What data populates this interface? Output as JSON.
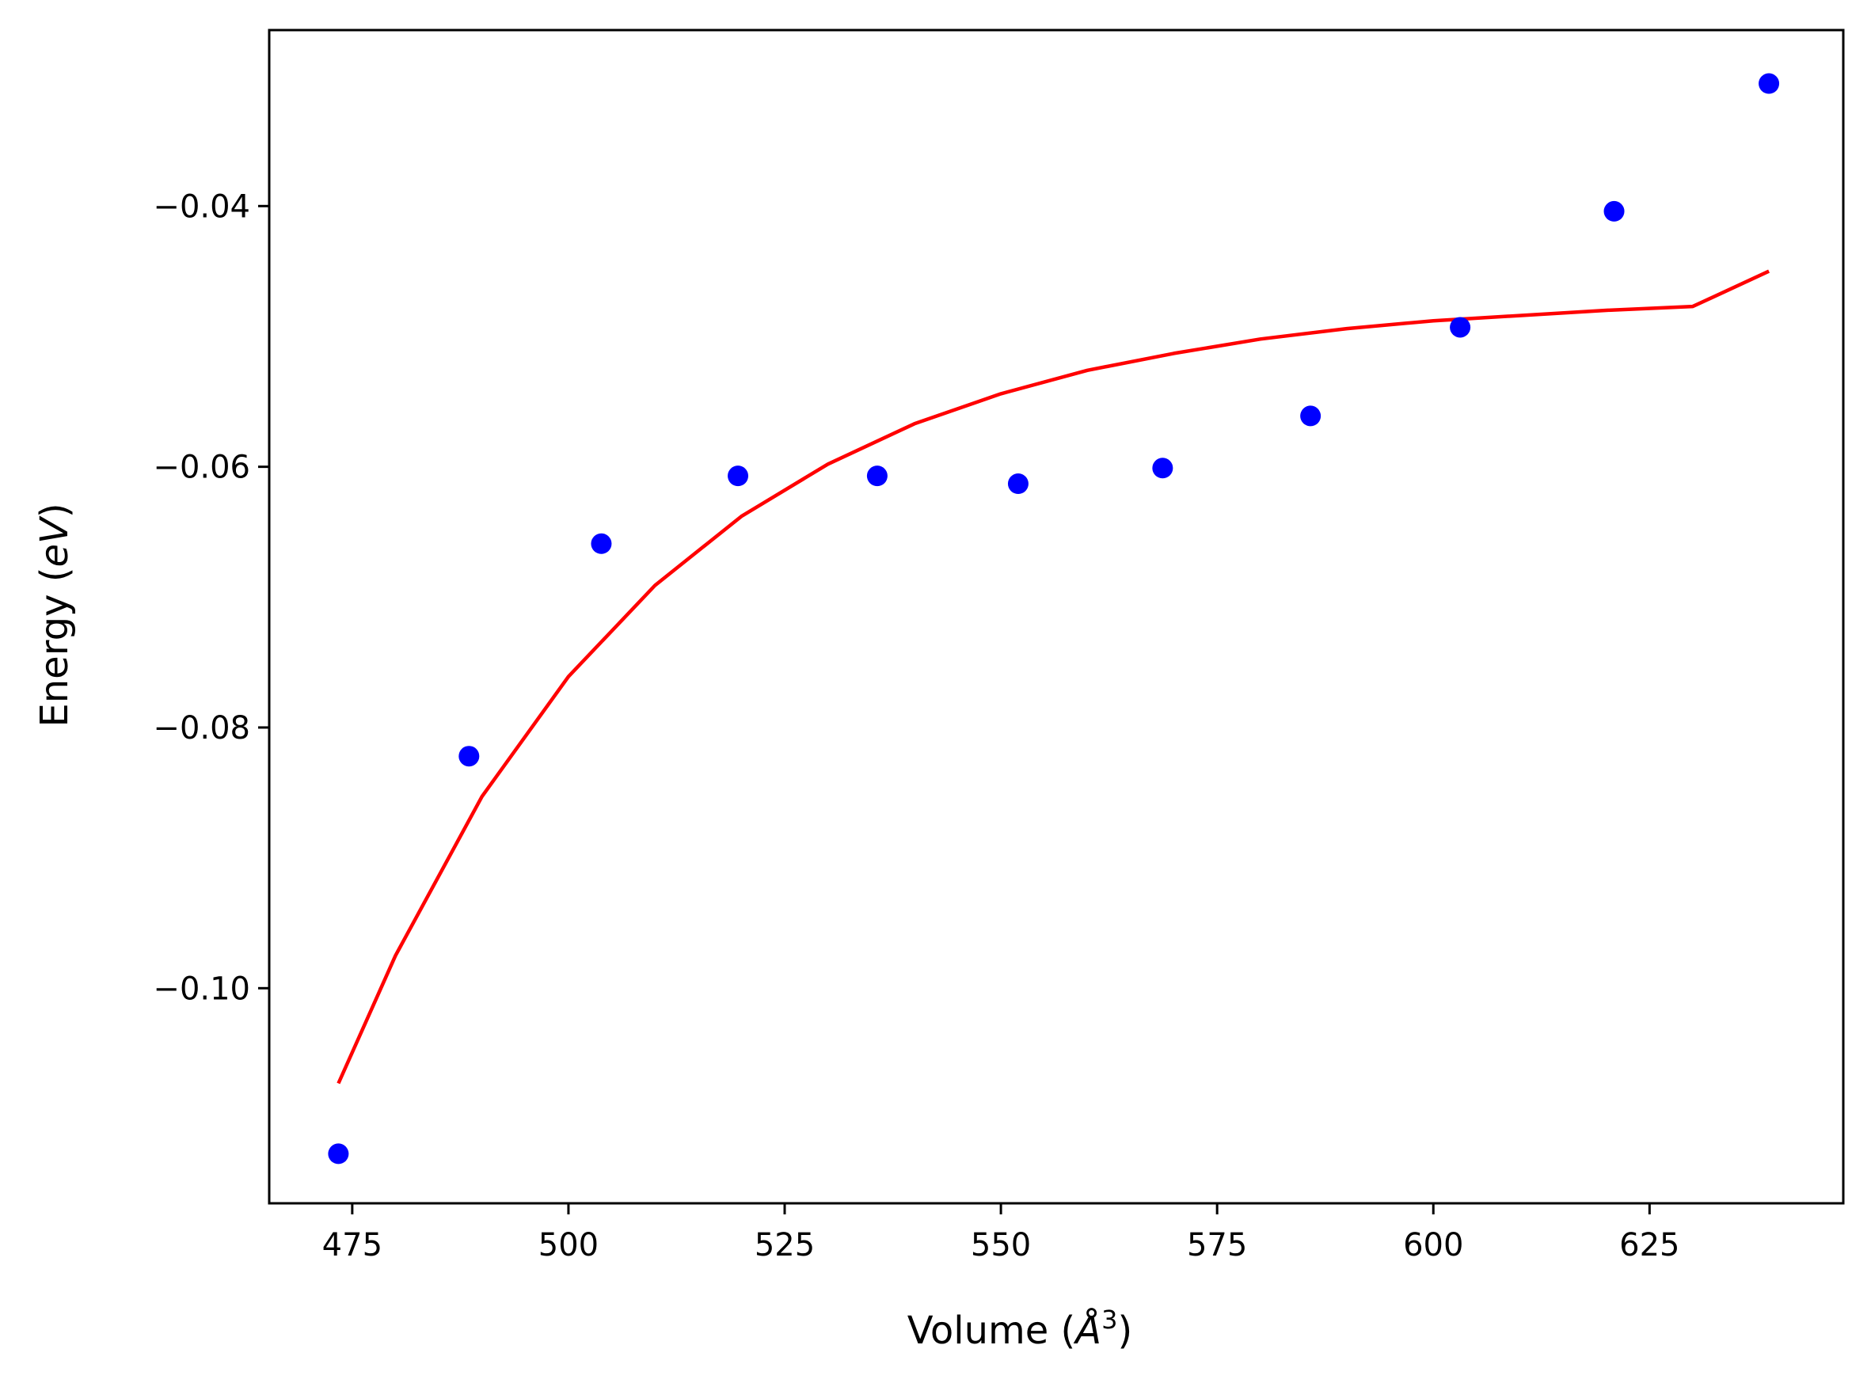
{
  "chart_data": {
    "type": "scatter",
    "title": "",
    "xlabel": "Volume",
    "xlabel_unit": "Å",
    "xlabel_unit_exponent": "3",
    "ylabel": "Energy",
    "ylabel_unit": "eV",
    "xlim": [
      465.4,
      647.4
    ],
    "ylim": [
      -0.1165,
      -0.0265
    ],
    "xticks": [
      475,
      500,
      525,
      550,
      575,
      600,
      625
    ],
    "xtick_labels": [
      "475",
      "500",
      "525",
      "550",
      "575",
      "600",
      "625"
    ],
    "yticks": [
      -0.1,
      -0.08,
      -0.06,
      -0.04
    ],
    "ytick_labels": [
      "−0.10",
      "−0.08",
      "−0.06",
      "−0.04"
    ],
    "grid": false,
    "legend": "none",
    "series": [
      {
        "kind": "points",
        "color": "#0000ff",
        "points": [
          {
            "x": 473.4,
            "y": -0.1127
          },
          {
            "x": 488.5,
            "y": -0.0822
          },
          {
            "x": 503.8,
            "y": -0.0659
          },
          {
            "x": 519.6,
            "y": -0.0607
          },
          {
            "x": 535.7,
            "y": -0.0607
          },
          {
            "x": 552.0,
            "y": -0.0613
          },
          {
            "x": 568.7,
            "y": -0.0601
          },
          {
            "x": 585.8,
            "y": -0.0561
          },
          {
            "x": 603.1,
            "y": -0.0493
          },
          {
            "x": 620.9,
            "y": -0.0404
          },
          {
            "x": 638.8,
            "y": -0.0306
          }
        ]
      },
      {
        "kind": "line",
        "color": "#ff0000",
        "points": [
          {
            "x": 473.4,
            "y": -0.1073
          },
          {
            "x": 480,
            "y": -0.0975
          },
          {
            "x": 490,
            "y": -0.0853
          },
          {
            "x": 500,
            "y": -0.0761
          },
          {
            "x": 510,
            "y": -0.0691
          },
          {
            "x": 520,
            "y": -0.0638
          },
          {
            "x": 530,
            "y": -0.0598
          },
          {
            "x": 540,
            "y": -0.0567
          },
          {
            "x": 550,
            "y": -0.0544
          },
          {
            "x": 560,
            "y": -0.0526
          },
          {
            "x": 570,
            "y": -0.0513
          },
          {
            "x": 580,
            "y": -0.0502
          },
          {
            "x": 590,
            "y": -0.0494
          },
          {
            "x": 600,
            "y": -0.0488
          },
          {
            "x": 610,
            "y": -0.0484
          },
          {
            "x": 620,
            "y": -0.048
          },
          {
            "x": 630,
            "y": -0.0477
          },
          {
            "x": 638.8,
            "y": -0.045
          }
        ]
      }
    ]
  }
}
